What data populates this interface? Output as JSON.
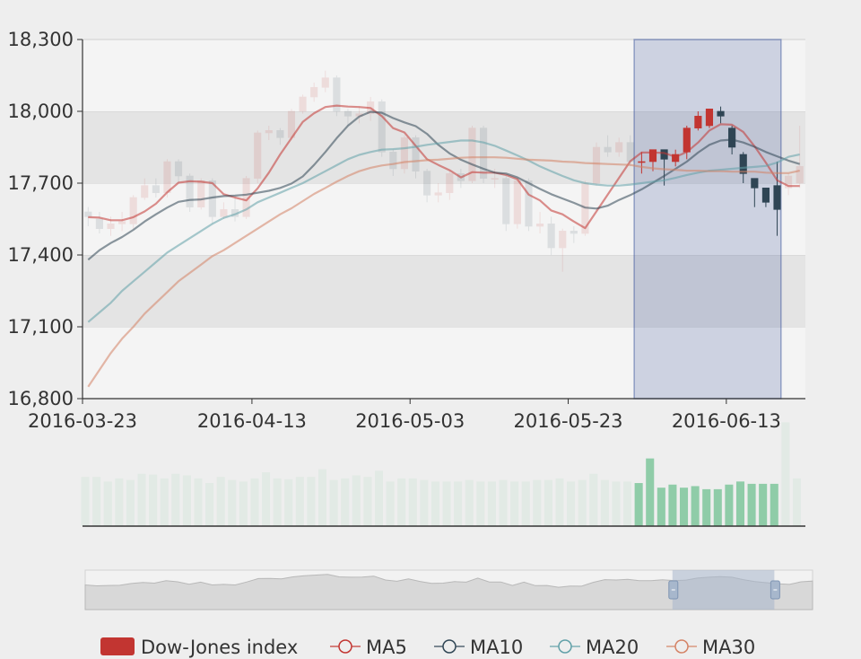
{
  "chart_data": {
    "type": "candlestick",
    "title": "",
    "y_axis": {
      "min": 16800,
      "max": 18300,
      "ticks": [
        16800,
        17100,
        17400,
        17700,
        18000,
        18300
      ],
      "tick_labels": [
        "16,800",
        "17,100",
        "17,400",
        "17,700",
        "18,000",
        "18,300"
      ]
    },
    "x_axis": {
      "tick_labels": [
        "2016-03-23",
        "2016-04-13",
        "2016-05-03",
        "2016-05-23",
        "2016-06-13"
      ],
      "tick_dates": [
        "2016-03-23",
        "2016-04-13",
        "2016-05-03",
        "2016-05-23",
        "2016-06-13"
      ]
    },
    "dates": [
      "2016-03-23",
      "2016-03-24",
      "2016-03-25",
      "2016-03-28",
      "2016-03-29",
      "2016-03-30",
      "2016-03-31",
      "2016-04-01",
      "2016-04-04",
      "2016-04-05",
      "2016-04-06",
      "2016-04-07",
      "2016-04-08",
      "2016-04-11",
      "2016-04-12",
      "2016-04-13",
      "2016-04-14",
      "2016-04-15",
      "2016-04-18",
      "2016-04-19",
      "2016-04-20",
      "2016-04-21",
      "2016-04-22",
      "2016-04-25",
      "2016-04-26",
      "2016-04-27",
      "2016-04-28",
      "2016-04-29",
      "2016-05-02",
      "2016-05-03",
      "2016-05-04",
      "2016-05-05",
      "2016-05-06",
      "2016-05-09",
      "2016-05-10",
      "2016-05-11",
      "2016-05-12",
      "2016-05-13",
      "2016-05-16",
      "2016-05-17",
      "2016-05-18",
      "2016-05-19",
      "2016-05-20",
      "2016-05-23",
      "2016-05-24",
      "2016-05-25",
      "2016-05-26",
      "2016-05-27",
      "2016-05-31",
      "2016-06-01",
      "2016-06-02",
      "2016-06-03",
      "2016-06-06",
      "2016-06-07",
      "2016-06-08",
      "2016-06-09",
      "2016-06-10",
      "2016-06-13",
      "2016-06-14",
      "2016-06-15",
      "2016-06-16",
      "2016-06-17",
      "2016-06-20",
      "2016-06-21"
    ],
    "ohlc": [
      [
        17580,
        17560,
        17600,
        17520
      ],
      [
        17550,
        17510,
        17580,
        17490
      ],
      [
        17510,
        17530,
        17560,
        17480
      ],
      [
        17530,
        17540,
        17580,
        17500
      ],
      [
        17530,
        17640,
        17650,
        17510
      ],
      [
        17640,
        17690,
        17720,
        17630
      ],
      [
        17690,
        17660,
        17720,
        17640
      ],
      [
        17660,
        17790,
        17800,
        17640
      ],
      [
        17790,
        17730,
        17800,
        17700
      ],
      [
        17730,
        17600,
        17740,
        17580
      ],
      [
        17600,
        17710,
        17720,
        17590
      ],
      [
        17710,
        17560,
        17720,
        17530
      ],
      [
        17560,
        17590,
        17620,
        17550
      ],
      [
        17590,
        17560,
        17640,
        17540
      ],
      [
        17560,
        17720,
        17730,
        17550
      ],
      [
        17720,
        17910,
        17920,
        17700
      ],
      [
        17910,
        17920,
        17940,
        17880
      ],
      [
        17920,
        17890,
        17930,
        17860
      ],
      [
        17890,
        18000,
        18010,
        17880
      ],
      [
        18000,
        18060,
        18070,
        17990
      ],
      [
        18060,
        18100,
        18120,
        18040
      ],
      [
        18100,
        18140,
        18170,
        18080
      ],
      [
        18140,
        18000,
        18150,
        17980
      ],
      [
        18000,
        17980,
        18010,
        17940
      ],
      [
        17980,
        17990,
        18020,
        17950
      ],
      [
        17990,
        18040,
        18060,
        17960
      ],
      [
        18040,
        17830,
        18050,
        17810
      ],
      [
        17830,
        17760,
        17840,
        17730
      ],
      [
        17760,
        17890,
        17900,
        17740
      ],
      [
        17890,
        17750,
        17900,
        17720
      ],
      [
        17750,
        17650,
        17760,
        17620
      ],
      [
        17650,
        17660,
        17700,
        17620
      ],
      [
        17660,
        17740,
        17750,
        17630
      ],
      [
        17740,
        17710,
        17760,
        17680
      ],
      [
        17710,
        17930,
        17940,
        17700
      ],
      [
        17930,
        17720,
        17940,
        17700
      ],
      [
        17720,
        17720,
        17760,
        17680
      ],
      [
        17720,
        17530,
        17730,
        17500
      ],
      [
        17530,
        17710,
        17720,
        17510
      ],
      [
        17710,
        17520,
        17720,
        17500
      ],
      [
        17520,
        17530,
        17580,
        17490
      ],
      [
        17530,
        17430,
        17560,
        17400
      ],
      [
        17430,
        17500,
        17510,
        17330
      ],
      [
        17500,
        17490,
        17520,
        17450
      ],
      [
        17490,
        17700,
        17710,
        17480
      ],
      [
        17700,
        17850,
        17870,
        17690
      ],
      [
        17850,
        17830,
        17900,
        17810
      ],
      [
        17830,
        17870,
        17890,
        17810
      ],
      [
        17870,
        17790,
        17900,
        17770
      ],
      [
        17790,
        17790,
        17830,
        17740
      ],
      [
        17790,
        17840,
        17840,
        17750
      ],
      [
        17840,
        17800,
        17840,
        17690
      ],
      [
        17790,
        17820,
        17840,
        17770
      ],
      [
        17830,
        17930,
        17940,
        17800
      ],
      [
        17930,
        17980,
        18000,
        17920
      ],
      [
        17940,
        18010,
        18010,
        17930
      ],
      [
        18000,
        17980,
        18020,
        17950
      ],
      [
        17930,
        17850,
        17940,
        17820
      ],
      [
        17820,
        17740,
        17830,
        17700
      ],
      [
        17720,
        17680,
        17720,
        17600
      ],
      [
        17680,
        17620,
        17680,
        17600
      ],
      [
        17690,
        17590,
        17790,
        17480
      ],
      [
        17680,
        17730,
        17740,
        17650
      ],
      [
        17700,
        17770,
        17940,
        17680
      ]
    ],
    "series": [
      {
        "name": "MA5",
        "color": "#c23531",
        "values": [
          17558,
          17556,
          17545,
          17545,
          17558,
          17582,
          17614,
          17662,
          17702,
          17708,
          17706,
          17700,
          17654,
          17640,
          17628,
          17678,
          17744,
          17820,
          17888,
          17956,
          17992,
          18018,
          18024,
          18020,
          18018,
          18014,
          17980,
          17930,
          17912,
          17856,
          17800,
          17776,
          17754,
          17724,
          17746,
          17744,
          17744,
          17734,
          17716,
          17652,
          17628,
          17586,
          17570,
          17540,
          17512,
          17582,
          17652,
          17722,
          17792,
          17828,
          17828,
          17826,
          17810,
          17830,
          17870,
          17920,
          17946,
          17944,
          17914,
          17854,
          17786,
          17712,
          17688,
          17688
        ]
      },
      {
        "name": "MA10",
        "color": "#2f4554",
        "values": [
          17380,
          17420,
          17450,
          17475,
          17505,
          17540,
          17570,
          17598,
          17622,
          17630,
          17632,
          17640,
          17646,
          17648,
          17652,
          17660,
          17668,
          17680,
          17698,
          17728,
          17776,
          17830,
          17888,
          17940,
          17978,
          17998,
          17994,
          17972,
          17954,
          17938,
          17906,
          17860,
          17824,
          17798,
          17778,
          17760,
          17744,
          17740,
          17724,
          17700,
          17676,
          17654,
          17636,
          17618,
          17598,
          17594,
          17606,
          17630,
          17650,
          17674,
          17702,
          17730,
          17760,
          17790,
          17828,
          17860,
          17878,
          17882,
          17870,
          17852,
          17830,
          17812,
          17794,
          17780
        ]
      },
      {
        "name": "MA20",
        "color": "#61a0a8",
        "values": [
          17120,
          17160,
          17200,
          17250,
          17290,
          17330,
          17370,
          17410,
          17440,
          17470,
          17500,
          17530,
          17555,
          17570,
          17590,
          17620,
          17640,
          17660,
          17680,
          17700,
          17725,
          17750,
          17775,
          17800,
          17818,
          17830,
          17840,
          17842,
          17846,
          17852,
          17860,
          17866,
          17872,
          17878,
          17878,
          17870,
          17856,
          17836,
          17816,
          17794,
          17770,
          17750,
          17730,
          17712,
          17700,
          17694,
          17690,
          17690,
          17694,
          17700,
          17706,
          17712,
          17722,
          17734,
          17744,
          17752,
          17756,
          17760,
          17764,
          17768,
          17772,
          17786,
          17810,
          17820
        ]
      },
      {
        "name": "MA30",
        "color": "#d48265",
        "values": [
          16850,
          16920,
          16990,
          17050,
          17100,
          17155,
          17200,
          17245,
          17290,
          17325,
          17360,
          17395,
          17420,
          17450,
          17480,
          17510,
          17540,
          17570,
          17595,
          17625,
          17655,
          17680,
          17706,
          17730,
          17750,
          17764,
          17774,
          17780,
          17788,
          17792,
          17796,
          17798,
          17802,
          17806,
          17808,
          17808,
          17808,
          17806,
          17802,
          17798,
          17796,
          17794,
          17790,
          17788,
          17784,
          17782,
          17780,
          17778,
          17776,
          17768,
          17762,
          17758,
          17756,
          17752,
          17752,
          17750,
          17750,
          17748,
          17748,
          17748,
          17744,
          17742,
          17742,
          17752
        ]
      }
    ],
    "volume": [
      64,
      64,
      58,
      62,
      60,
      68,
      67,
      62,
      68,
      66,
      62,
      56,
      64,
      60,
      58,
      62,
      70,
      62,
      61,
      64,
      64,
      74,
      60,
      62,
      66,
      64,
      72,
      58,
      62,
      62,
      60,
      58,
      58,
      58,
      60,
      58,
      58,
      60,
      58,
      58,
      60,
      60,
      62,
      58,
      60,
      68,
      60,
      58,
      58,
      56,
      88,
      50,
      54,
      50,
      52,
      48,
      48,
      54,
      58,
      55,
      55,
      55,
      135,
      62
    ],
    "grid": true,
    "dataZoom": {
      "start_date": "2016-06-01",
      "end_date": "2016-06-16",
      "brush_start_date": "2016-06-01",
      "brush_end_date": "2016-06-17"
    },
    "legend": [
      {
        "name": "Dow-Jones index",
        "icon": "rect-filled-icon",
        "color": "#c23531"
      },
      {
        "name": "MA5",
        "icon": "circle-line-icon",
        "color": "#c23531"
      },
      {
        "name": "MA10",
        "icon": "circle-line-icon",
        "color": "#2f4554"
      },
      {
        "name": "MA20",
        "icon": "circle-line-icon",
        "color": "#61a0a8"
      },
      {
        "name": "MA30",
        "icon": "circle-line-icon",
        "color": "#d48265"
      }
    ],
    "legend_position": "bottom",
    "colors": {
      "up": "#c23531",
      "down": "#2f4554",
      "volume": "#8fcca8",
      "brush": "#304c98"
    }
  }
}
